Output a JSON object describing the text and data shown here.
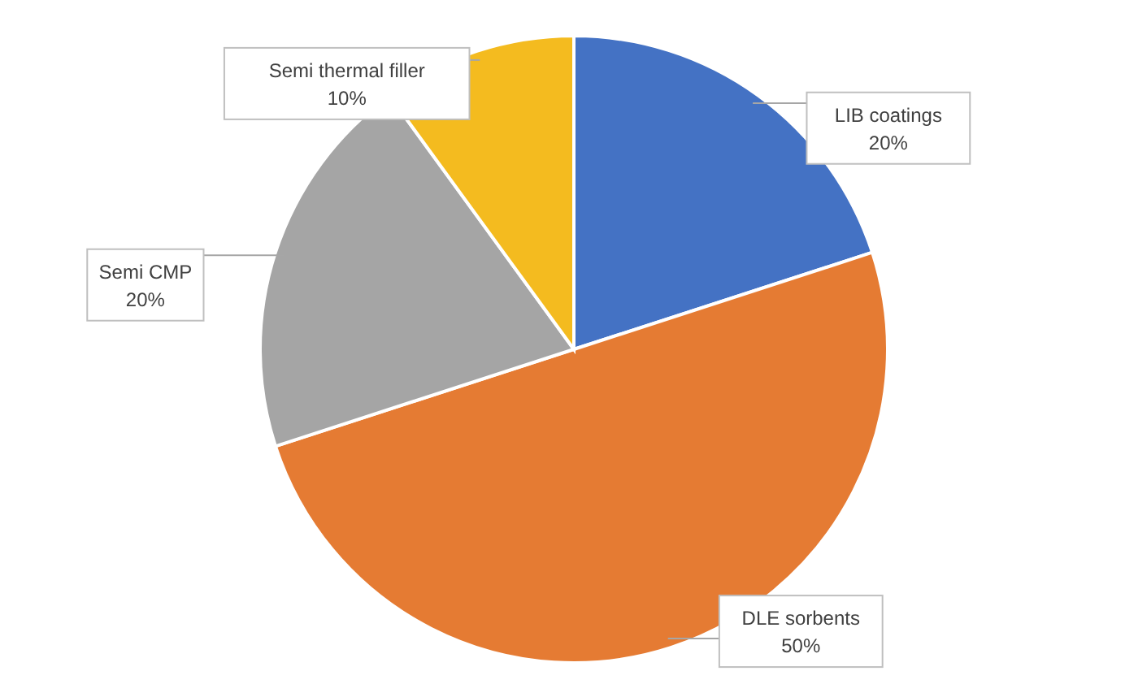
{
  "chart_data": {
    "type": "pie",
    "categories": [
      "LIB coatings",
      "DLE sorbents",
      "Semi CMP",
      "Semi thermal filler"
    ],
    "values": [
      20,
      50,
      20,
      10
    ],
    "value_labels": [
      "20%",
      "50%",
      "20%",
      "10%"
    ],
    "colors": [
      "#4472c4",
      "#e57b33",
      "#a5a5a5",
      "#f4bb1f"
    ]
  }
}
